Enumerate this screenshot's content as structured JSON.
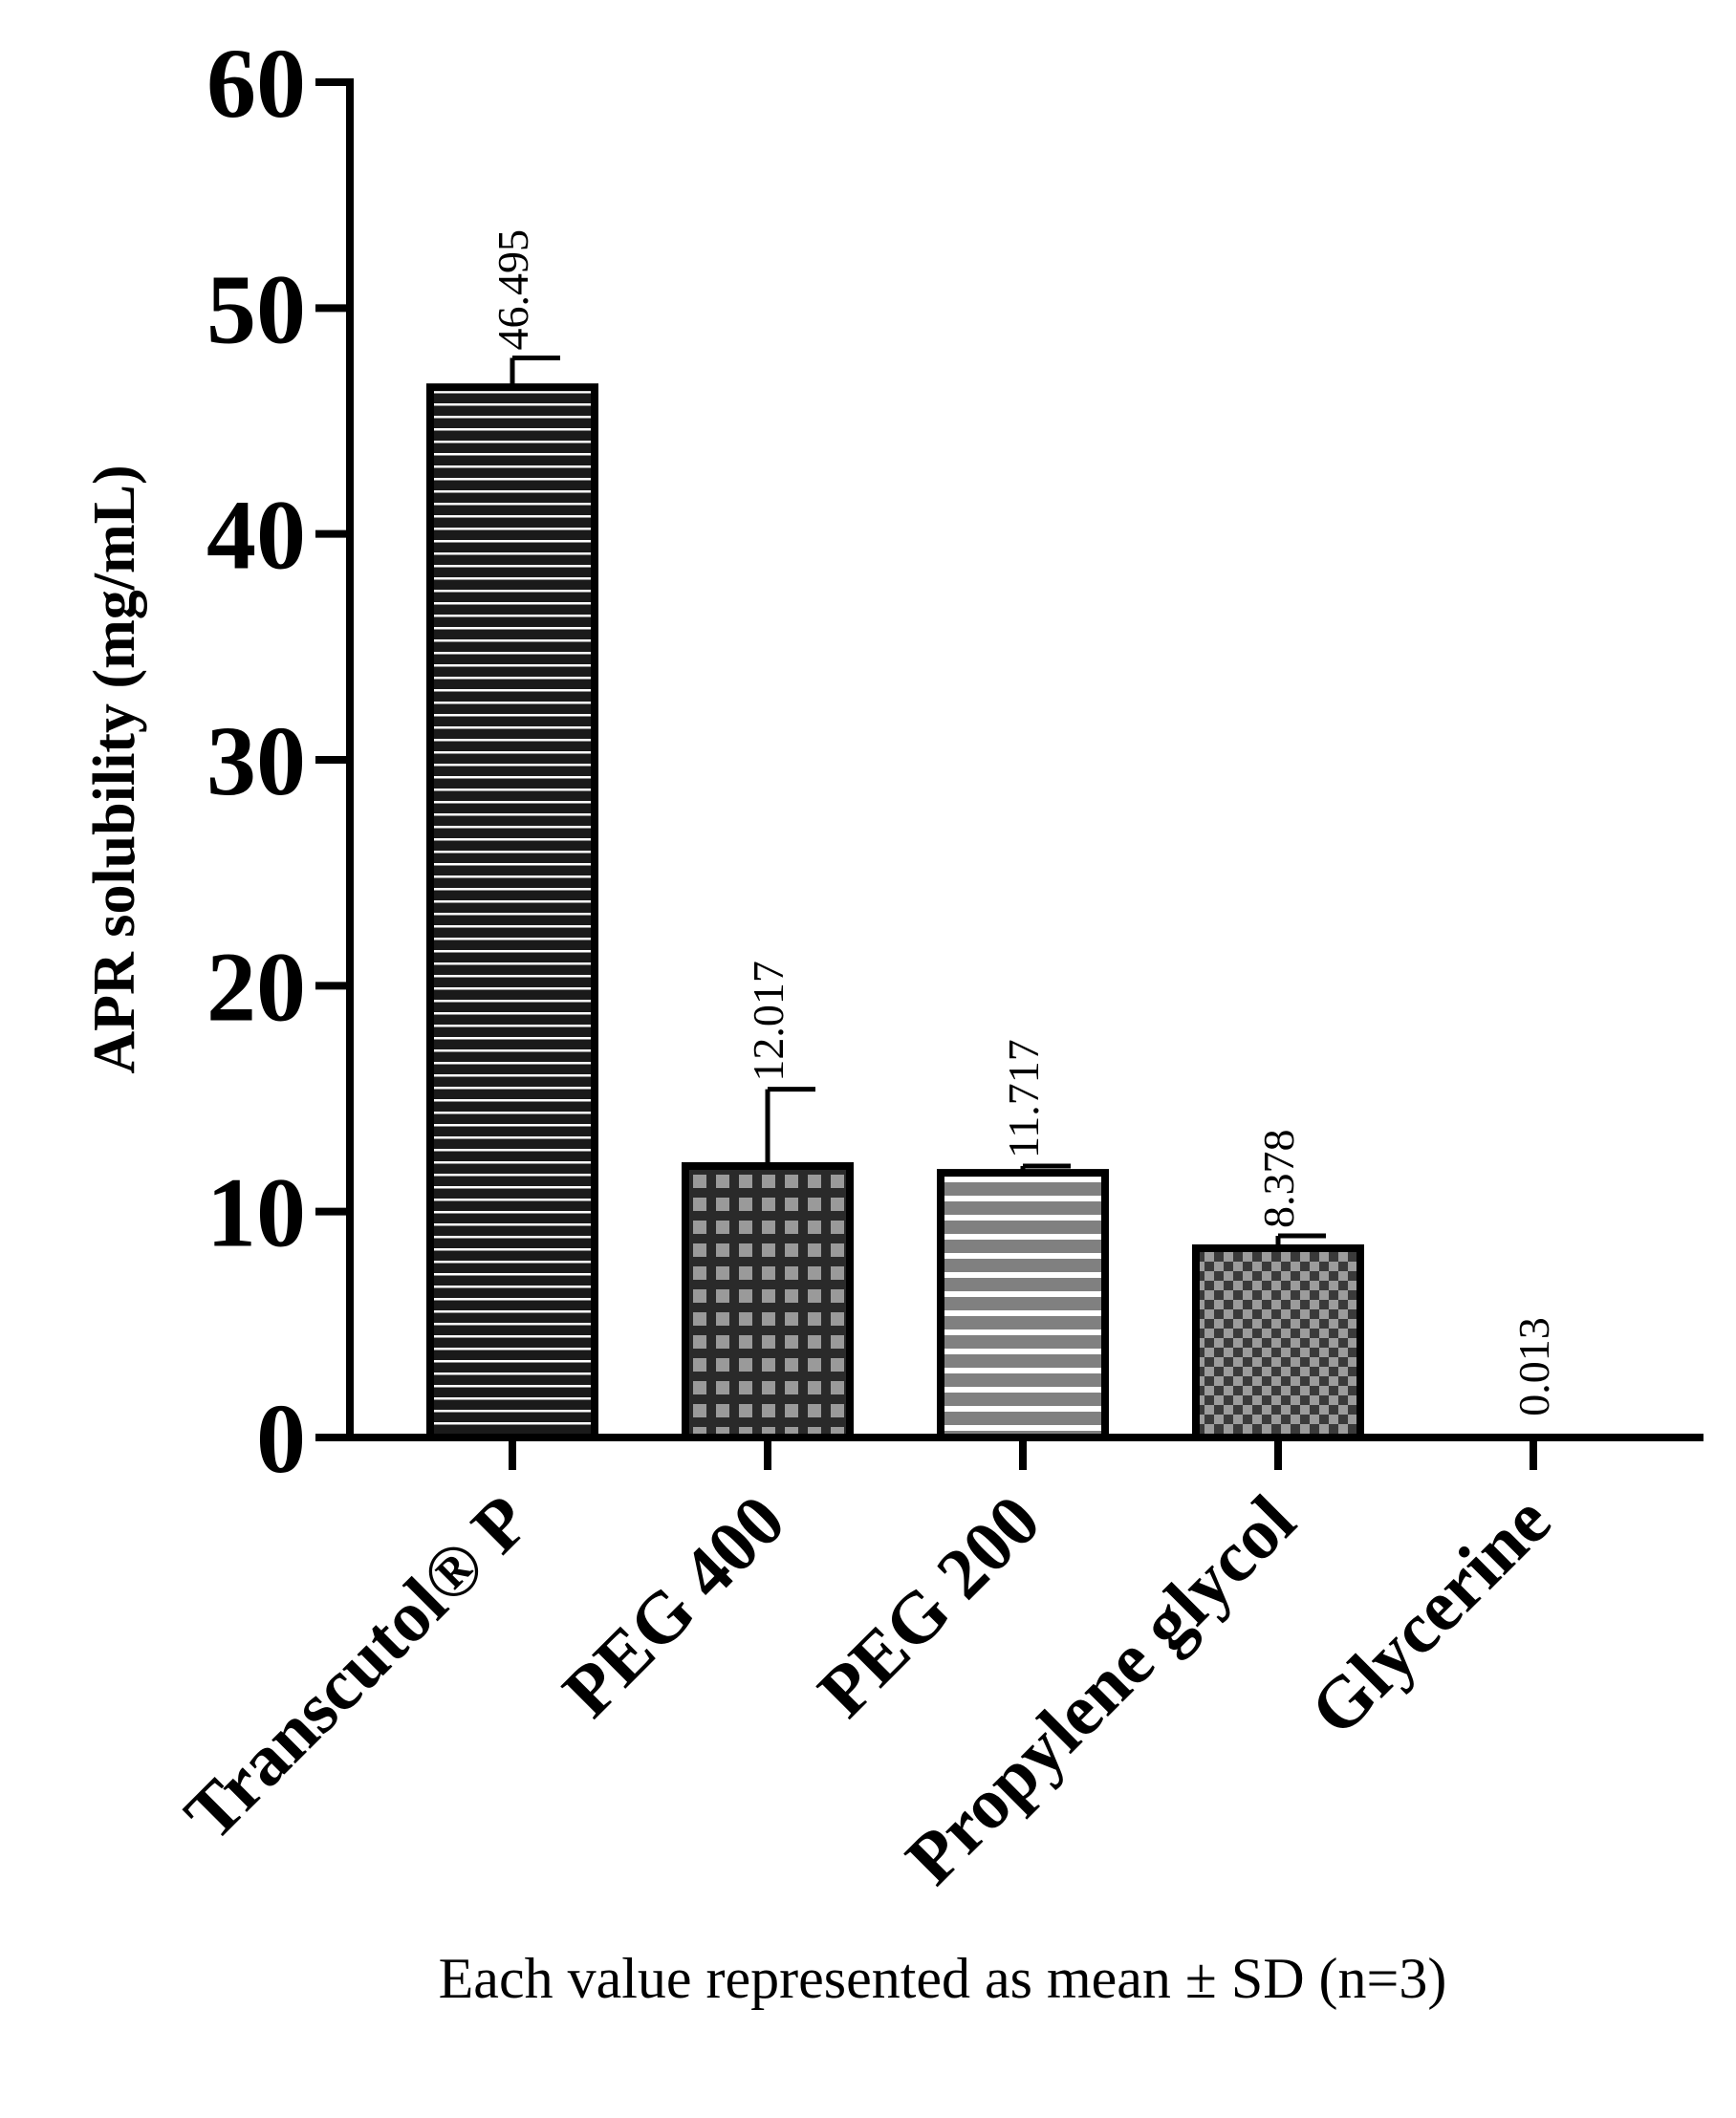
{
  "chart_data": {
    "type": "bar",
    "categories": [
      "Transcutol® P",
      "PEG 400",
      "PEG 200",
      "Propylene glycol",
      "Glycerine"
    ],
    "values": [
      46.495,
      12.017,
      11.717,
      8.378,
      0.013
    ],
    "error_bars": [
      1.3,
      3.4,
      0.3,
      0.55,
      0
    ],
    "data_labels": [
      "46.495",
      "12.017",
      "11.717",
      "8.378",
      "0.013"
    ],
    "patterns": [
      "horizontal-lines-dark",
      "grid-dark",
      "horizontal-stripes-gray",
      "checkerboard",
      "none"
    ],
    "ylabel": "APR solubility (mg/mL)",
    "xlabel": "",
    "ylim": [
      0,
      60
    ],
    "yticks": [
      0,
      10,
      20,
      30,
      40,
      50,
      60
    ],
    "caption": "Each value represented as mean ± SD (n=3)",
    "grid": false,
    "legend": "none"
  }
}
